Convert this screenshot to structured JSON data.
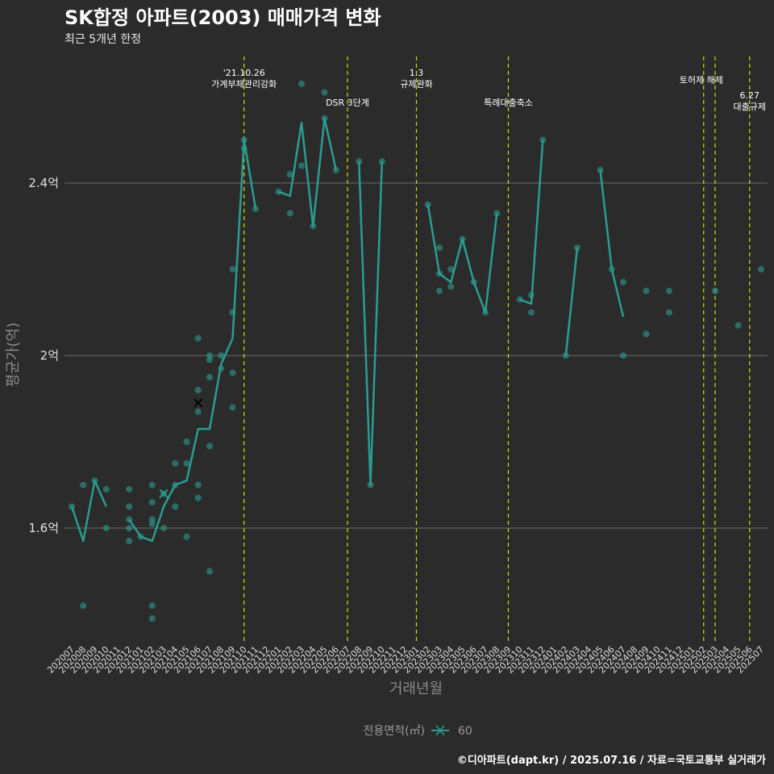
{
  "chart_data": {
    "type": "line",
    "title": "SK합정 아파트(2003) 매매가격 변화",
    "subtitle": "최근 5개년 한정",
    "xlabel": "거래년월",
    "ylabel": "평균가(억)",
    "caption": "©디아파트(dapt.kr) / 2025.07.16 / 자료=국토교통부 실거래가",
    "legend_title": "전용면적(㎡)",
    "legend_label": "60",
    "series_color": "#2a9d8f",
    "highlight_color": "#000000",
    "event_line_color": "#d7d700",
    "ylim": [
      1.33,
      2.78
    ],
    "yticks": [
      {
        "value": 1.6,
        "label": "1.6억"
      },
      {
        "value": 2.0,
        "label": "2억"
      },
      {
        "value": 2.4,
        "label": "2.4억"
      }
    ],
    "categories": [
      "202007",
      "202008",
      "202009",
      "202010",
      "202011",
      "202012",
      "202101",
      "202102",
      "202103",
      "202104",
      "202105",
      "202106",
      "202107",
      "202108",
      "202109",
      "202110",
      "202111",
      "202112",
      "202201",
      "202202",
      "202203",
      "202204",
      "202205",
      "202206",
      "202207",
      "202208",
      "202209",
      "202210",
      "202211",
      "202212",
      "202301",
      "202302",
      "202303",
      "202304",
      "202305",
      "202306",
      "202307",
      "202308",
      "202309",
      "202310",
      "202311",
      "202312",
      "202401",
      "202402",
      "202403",
      "202404",
      "202405",
      "202406",
      "202407",
      "202408",
      "202409",
      "202410",
      "202411",
      "202412",
      "202501",
      "202502",
      "202503",
      "202504",
      "202505",
      "202506",
      "202507"
    ],
    "line_segments": [
      [
        [
          "202007",
          1.65
        ],
        [
          "202008",
          1.57
        ],
        [
          "202009",
          1.71
        ],
        [
          "202010",
          1.65
        ]
      ],
      [
        [
          "202012",
          1.62
        ],
        [
          "202101",
          1.58
        ],
        [
          "202102",
          1.57
        ],
        [
          "202103",
          1.65
        ],
        [
          "202104",
          1.7
        ],
        [
          "202105",
          1.71
        ],
        [
          "202106",
          1.83
        ],
        [
          "202107",
          1.83
        ],
        [
          "202108",
          1.98
        ],
        [
          "202109",
          2.04
        ],
        [
          "202110",
          2.5
        ],
        [
          "202111",
          2.34
        ]
      ],
      [
        [
          "202201",
          2.38
        ],
        [
          "202202",
          2.37
        ],
        [
          "202203",
          2.54
        ],
        [
          "202204",
          2.3
        ],
        [
          "202205",
          2.55
        ],
        [
          "202206",
          2.43
        ]
      ],
      [
        [
          "202208",
          2.45
        ],
        [
          "202209",
          1.7
        ],
        [
          "202210",
          2.45
        ]
      ],
      [
        [
          "202302",
          2.35
        ],
        [
          "202303",
          2.19
        ],
        [
          "202304",
          2.17
        ],
        [
          "202305",
          2.27
        ],
        [
          "202306",
          2.17
        ],
        [
          "202307",
          2.1
        ],
        [
          "202308",
          2.33
        ]
      ],
      [
        [
          "202310",
          2.13
        ],
        [
          "202311",
          2.12
        ],
        [
          "202312",
          2.5
        ]
      ],
      [
        [
          "202402",
          2.0
        ],
        [
          "202403",
          2.25
        ]
      ],
      [
        [
          "202405",
          2.43
        ],
        [
          "202406",
          2.2
        ],
        [
          "202407",
          2.09
        ]
      ]
    ],
    "points": [
      [
        "202007",
        1.65
      ],
      [
        "202008",
        1.7
      ],
      [
        "202008",
        1.42
      ],
      [
        "202009",
        1.71
      ],
      [
        "202010",
        1.69
      ],
      [
        "202010",
        1.6
      ],
      [
        "202012",
        1.69
      ],
      [
        "202012",
        1.65
      ],
      [
        "202012",
        1.62
      ],
      [
        "202012",
        1.6
      ],
      [
        "202012",
        1.57
      ],
      [
        "202101",
        1.58
      ],
      [
        "202102",
        1.7
      ],
      [
        "202102",
        1.66
      ],
      [
        "202102",
        1.62
      ],
      [
        "202102",
        1.61
      ],
      [
        "202102",
        1.42
      ],
      [
        "202102",
        1.39
      ],
      [
        "202103",
        1.68
      ],
      [
        "202103",
        1.6
      ],
      [
        "202104",
        1.75
      ],
      [
        "202104",
        1.7
      ],
      [
        "202104",
        1.65
      ],
      [
        "202105",
        1.8
      ],
      [
        "202105",
        1.75
      ],
      [
        "202105",
        1.58
      ],
      [
        "202106",
        2.04
      ],
      [
        "202106",
        1.92
      ],
      [
        "202106",
        1.87
      ],
      [
        "202106",
        1.7
      ],
      [
        "202106",
        1.67
      ],
      [
        "202107",
        2.0
      ],
      [
        "202107",
        1.99
      ],
      [
        "202107",
        1.95
      ],
      [
        "202107",
        1.79
      ],
      [
        "202107",
        1.5
      ],
      [
        "202108",
        2.0
      ],
      [
        "202108",
        1.97
      ],
      [
        "202109",
        2.2
      ],
      [
        "202109",
        2.1
      ],
      [
        "202109",
        1.96
      ],
      [
        "202109",
        1.88
      ],
      [
        "202110",
        2.5
      ],
      [
        "202110",
        2.48
      ],
      [
        "202111",
        2.34
      ],
      [
        "202201",
        2.38
      ],
      [
        "202202",
        2.42
      ],
      [
        "202202",
        2.33
      ],
      [
        "202203",
        2.63
      ],
      [
        "202203",
        2.44
      ],
      [
        "202204",
        2.3
      ],
      [
        "202205",
        2.61
      ],
      [
        "202205",
        2.55
      ],
      [
        "202206",
        2.43
      ],
      [
        "202208",
        2.45
      ],
      [
        "202209",
        1.7
      ],
      [
        "202210",
        2.45
      ],
      [
        "202302",
        2.35
      ],
      [
        "202303",
        2.25
      ],
      [
        "202303",
        2.19
      ],
      [
        "202303",
        2.15
      ],
      [
        "202304",
        2.2
      ],
      [
        "202304",
        2.16
      ],
      [
        "202305",
        2.27
      ],
      [
        "202306",
        2.17
      ],
      [
        "202307",
        2.1
      ],
      [
        "202308",
        2.33
      ],
      [
        "202310",
        2.13
      ],
      [
        "202311",
        2.14
      ],
      [
        "202311",
        2.1
      ],
      [
        "202312",
        2.5
      ],
      [
        "202402",
        2.0
      ],
      [
        "202403",
        2.25
      ],
      [
        "202405",
        2.43
      ],
      [
        "202406",
        2.2
      ],
      [
        "202407",
        2.17
      ],
      [
        "202407",
        2.0
      ],
      [
        "202409",
        2.15
      ],
      [
        "202409",
        2.05
      ],
      [
        "202411",
        2.15
      ],
      [
        "202411",
        2.1
      ],
      [
        "202503",
        2.15
      ],
      [
        "202505",
        2.07
      ],
      [
        "202507",
        2.2
      ]
    ],
    "highlight_points": [
      [
        "202106",
        1.89
      ],
      [
        "202103",
        1.68
      ]
    ],
    "event_lines": [
      {
        "month": "202110",
        "labels": [
          "'21.10.26",
          "가계부채관리강화"
        ],
        "level": 0
      },
      {
        "month": "202207",
        "labels": [
          "DSR 3단계"
        ],
        "level": 1
      },
      {
        "month": "202301",
        "labels": [
          "1.3",
          "규제완화"
        ],
        "level": 0
      },
      {
        "month": "202309",
        "labels": [
          "특례대출축소"
        ],
        "level": 1
      },
      {
        "month": "202502",
        "labels": [
          "토허제 해제"
        ],
        "level": 0,
        "anchor": "end-right"
      },
      {
        "month": "202503",
        "labels": [],
        "level": 0
      },
      {
        "month": "202506",
        "labels": [
          "6.27",
          "대출규제"
        ],
        "level": 2
      }
    ]
  }
}
